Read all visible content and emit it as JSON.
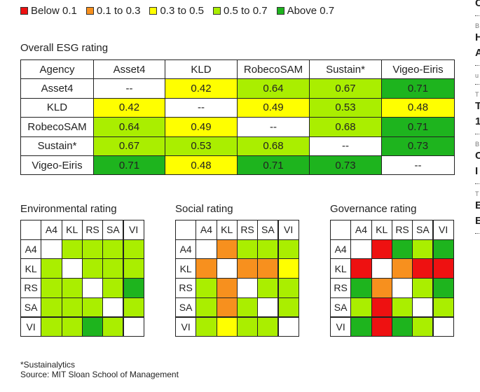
{
  "legend": [
    {
      "label": "Below 0.1",
      "color": "#ee1111"
    },
    {
      "label": "0.1 to 0.3",
      "color": "#f7901e"
    },
    {
      "label": "0.3 to 0.5",
      "color": "#ffff00"
    },
    {
      "label": "0.5 to 0.7",
      "color": "#aaee00"
    },
    {
      "label": "Above 0.7",
      "color": "#1eb41e"
    }
  ],
  "overall": {
    "title": "Overall ESG rating",
    "header": [
      "Agency",
      "Asset4",
      "KLD",
      "RobecoSAM",
      "Sustain*",
      "Vigeo-Eiris"
    ],
    "rows": [
      {
        "agency": "Asset4",
        "cells": [
          "--",
          "0.42",
          "0.64",
          "0.67",
          "0.71"
        ],
        "colors": [
          "#ffffff",
          "#ffff00",
          "#aaee00",
          "#aaee00",
          "#1eb41e"
        ]
      },
      {
        "agency": "KLD",
        "cells": [
          "0.42",
          "--",
          "0.49",
          "0.53",
          "0.48"
        ],
        "colors": [
          "#ffff00",
          "#ffffff",
          "#ffff00",
          "#aaee00",
          "#ffff00"
        ]
      },
      {
        "agency": "RobecoSAM",
        "cells": [
          "0.64",
          "0.49",
          "--",
          "0.68",
          "0.71"
        ],
        "colors": [
          "#aaee00",
          "#ffff00",
          "#ffffff",
          "#aaee00",
          "#1eb41e"
        ]
      },
      {
        "agency": "Sustain*",
        "cells": [
          "0.67",
          "0.53",
          "0.68",
          "--",
          "0.73"
        ],
        "colors": [
          "#aaee00",
          "#aaee00",
          "#aaee00",
          "#ffffff",
          "#1eb41e"
        ]
      },
      {
        "agency": "Vigeo-Eiris",
        "cells": [
          "0.71",
          "0.48",
          "0.71",
          "0.73",
          "--"
        ],
        "colors": [
          "#1eb41e",
          "#ffff00",
          "#1eb41e",
          "#1eb41e",
          "#ffffff"
        ]
      }
    ]
  },
  "panels": [
    {
      "title": "Environmental rating",
      "labels": [
        "A4",
        "KL",
        "RS",
        "SA",
        "VI"
      ],
      "colors": [
        [
          "#ffffff",
          "#aaee00",
          "#aaee00",
          "#aaee00",
          "#aaee00"
        ],
        [
          "#aaee00",
          "#ffffff",
          "#aaee00",
          "#aaee00",
          "#aaee00"
        ],
        [
          "#aaee00",
          "#aaee00",
          "#ffffff",
          "#aaee00",
          "#1eb41e"
        ],
        [
          "#aaee00",
          "#aaee00",
          "#aaee00",
          "#ffffff",
          "#aaee00"
        ],
        [
          "#aaee00",
          "#aaee00",
          "#1eb41e",
          "#aaee00",
          "#ffffff"
        ]
      ]
    },
    {
      "title": "Social rating",
      "labels": [
        "A4",
        "KL",
        "RS",
        "SA",
        "VI"
      ],
      "colors": [
        [
          "#ffffff",
          "#f7901e",
          "#aaee00",
          "#aaee00",
          "#aaee00"
        ],
        [
          "#f7901e",
          "#ffffff",
          "#f7901e",
          "#f7901e",
          "#ffff00"
        ],
        [
          "#aaee00",
          "#f7901e",
          "#ffffff",
          "#aaee00",
          "#aaee00"
        ],
        [
          "#aaee00",
          "#f7901e",
          "#aaee00",
          "#ffffff",
          "#aaee00"
        ],
        [
          "#aaee00",
          "#ffff00",
          "#aaee00",
          "#aaee00",
          "#ffffff"
        ]
      ]
    },
    {
      "title": "Governance rating",
      "labels": [
        "A4",
        "KL",
        "RS",
        "SA",
        "VI"
      ],
      "colors": [
        [
          "#ffffff",
          "#ee1111",
          "#1eb41e",
          "#aaee00",
          "#1eb41e"
        ],
        [
          "#ee1111",
          "#ffffff",
          "#f7901e",
          "#ee1111",
          "#ee1111"
        ],
        [
          "#1eb41e",
          "#f7901e",
          "#ffffff",
          "#aaee00",
          "#1eb41e"
        ],
        [
          "#aaee00",
          "#ee1111",
          "#aaee00",
          "#ffffff",
          "#aaee00"
        ],
        [
          "#1eb41e",
          "#ee1111",
          "#1eb41e",
          "#aaee00",
          "#ffffff"
        ]
      ]
    }
  ],
  "footnote": "*Sustainalytics",
  "source": "Source: MIT Sloan School of Management",
  "sidebar": [
    {
      "kicker": "",
      "lines": [
        "C"
      ]
    },
    {
      "kicker": "B",
      "lines": [
        "H",
        "A"
      ]
    },
    {
      "kicker": "u",
      "lines": []
    },
    {
      "kicker": "T",
      "lines": [
        "T",
        "1"
      ]
    },
    {
      "kicker": "B",
      "lines": [
        "C",
        "I"
      ]
    },
    {
      "kicker": "T",
      "lines": [
        "E",
        "E"
      ]
    }
  ]
}
